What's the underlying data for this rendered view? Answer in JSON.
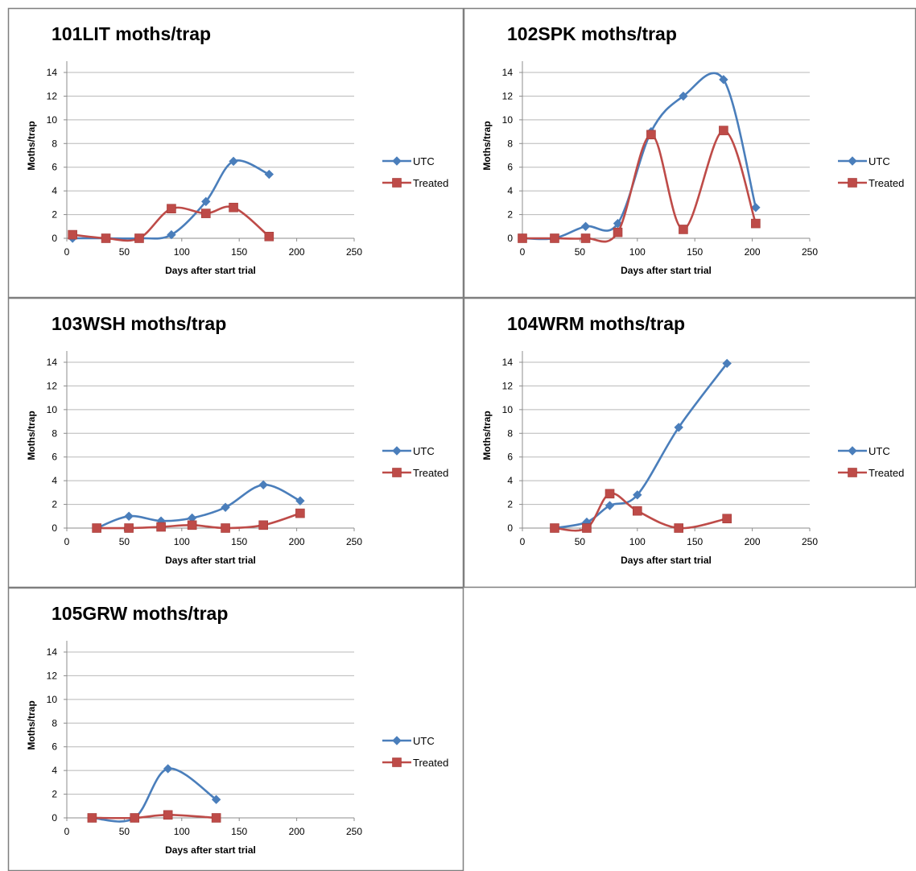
{
  "colors": {
    "utc": "#4a7ebb",
    "treated": "#be4b48",
    "grid": "#b8b8b8",
    "axis": "#8c8c8c",
    "border": "#7f7f7f"
  },
  "chart_data": [
    {
      "type": "line",
      "title": "101LIT moths/trap",
      "xlabel": "Days after start trial",
      "ylabel": "Moths/trap",
      "xlim": [
        0,
        250
      ],
      "ylim": [
        0,
        14
      ],
      "xticks": [
        0,
        50,
        100,
        150,
        200,
        250
      ],
      "yticks": [
        0,
        2,
        4,
        6,
        8,
        10,
        12,
        14
      ],
      "grid": true,
      "legend": "right",
      "smooth": true,
      "series": [
        {
          "name": "UTC",
          "marker": "diamond",
          "x": [
            5,
            34,
            63,
            91,
            121,
            145,
            176
          ],
          "y": [
            0,
            0,
            0,
            0.3,
            3.1,
            6.5,
            5.4
          ]
        },
        {
          "name": "Treated",
          "marker": "square",
          "x": [
            5,
            34,
            63,
            91,
            121,
            145,
            176
          ],
          "y": [
            0.3,
            0,
            0,
            2.5,
            2.1,
            2.6,
            0.15
          ]
        }
      ]
    },
    {
      "type": "line",
      "title": "102SPK moths/trap",
      "xlabel": "Days after start trial",
      "ylabel": "Moths/trap",
      "xlim": [
        0,
        250
      ],
      "ylim": [
        0,
        14
      ],
      "xticks": [
        0,
        50,
        100,
        150,
        200,
        250
      ],
      "yticks": [
        0,
        2,
        4,
        6,
        8,
        10,
        12,
        14
      ],
      "grid": true,
      "legend": "right",
      "smooth": true,
      "series": [
        {
          "name": "UTC",
          "marker": "diamond",
          "x": [
            0,
            28,
            55,
            83,
            112,
            140,
            175,
            203
          ],
          "y": [
            0,
            0,
            1.0,
            1.25,
            9.0,
            12.0,
            13.4,
            2.6
          ]
        },
        {
          "name": "Treated",
          "marker": "square",
          "x": [
            0,
            28,
            55,
            83,
            112,
            140,
            175,
            203
          ],
          "y": [
            0,
            0,
            0,
            0.5,
            8.75,
            0.75,
            9.1,
            1.25
          ]
        }
      ]
    },
    {
      "type": "line",
      "title": "103WSH moths/trap",
      "xlabel": "Days after start trial",
      "ylabel": "Moths/trap",
      "xlim": [
        0,
        250
      ],
      "ylim": [
        0,
        14
      ],
      "xticks": [
        0,
        50,
        100,
        150,
        200,
        250
      ],
      "yticks": [
        0,
        2,
        4,
        6,
        8,
        10,
        12,
        14
      ],
      "grid": true,
      "legend": "right",
      "smooth": true,
      "series": [
        {
          "name": "UTC",
          "marker": "diamond",
          "x": [
            26,
            54,
            82,
            109,
            138,
            171,
            203
          ],
          "y": [
            0,
            1.0,
            0.6,
            0.85,
            1.75,
            3.65,
            2.3
          ]
        },
        {
          "name": "Treated",
          "marker": "square",
          "x": [
            26,
            54,
            82,
            109,
            138,
            171,
            203
          ],
          "y": [
            0,
            0,
            0.1,
            0.25,
            0,
            0.25,
            1.25
          ]
        }
      ]
    },
    {
      "type": "line",
      "title": "104WRM moths/trap",
      "xlabel": "Days after start trial",
      "ylabel": "Moths/trap",
      "xlim": [
        0,
        250
      ],
      "ylim": [
        0,
        14
      ],
      "xticks": [
        0,
        50,
        100,
        150,
        200,
        250
      ],
      "yticks": [
        0,
        2,
        4,
        6,
        8,
        10,
        12,
        14
      ],
      "grid": true,
      "legend": "right",
      "smooth": true,
      "series": [
        {
          "name": "UTC",
          "marker": "diamond",
          "x": [
            28,
            56,
            76,
            100,
            136,
            178
          ],
          "y": [
            0,
            0.5,
            1.9,
            2.8,
            8.5,
            13.9
          ]
        },
        {
          "name": "Treated",
          "marker": "square",
          "x": [
            28,
            56,
            76,
            100,
            136,
            178
          ],
          "y": [
            0,
            0,
            2.9,
            1.45,
            0,
            0.8
          ]
        }
      ]
    },
    {
      "type": "line",
      "title": "105GRW moths/trap",
      "xlabel": "Days after start trial",
      "ylabel": "Moths/trap",
      "xlim": [
        0,
        250
      ],
      "ylim": [
        0,
        14
      ],
      "xticks": [
        0,
        50,
        100,
        150,
        200,
        250
      ],
      "yticks": [
        0,
        2,
        4,
        6,
        8,
        10,
        12,
        14
      ],
      "grid": true,
      "legend": "right",
      "smooth": true,
      "series": [
        {
          "name": "UTC",
          "marker": "diamond",
          "x": [
            22,
            59,
            88,
            130
          ],
          "y": [
            0,
            0,
            4.15,
            1.55
          ]
        },
        {
          "name": "Treated",
          "marker": "square",
          "x": [
            22,
            59,
            88,
            130
          ],
          "y": [
            0,
            0,
            0.25,
            0
          ]
        }
      ]
    }
  ]
}
